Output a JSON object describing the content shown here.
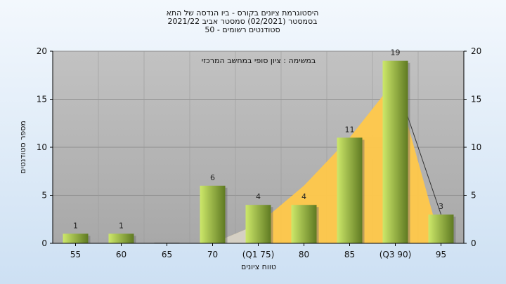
{
  "chart_data": {
    "type": "bar",
    "title_lines": [
      "היסטוגרמת ציונים בקורס - ביו הנדסה של התא",
      "בסמסטר  (02/2021)  סמסטר אביב 2021/22",
      "סטודנטים רשומים - 50"
    ],
    "annotation": "במשימה : ציון סופי במחשב המרכזי",
    "xlabel": "טווח ציונים",
    "ylabel": "מספר סטודנטים",
    "categories": [
      "55",
      "60",
      "65",
      "70",
      "(Q1 75)",
      "80",
      "85",
      "(Q3 90)",
      "95"
    ],
    "values": [
      1,
      1,
      0,
      6,
      4,
      4,
      11,
      19,
      3
    ],
    "data_labels": [
      "1",
      "1",
      "",
      "6",
      "4",
      "4",
      "11",
      "19",
      "3"
    ],
    "area_series": [
      0,
      0,
      0,
      0,
      2,
      6,
      11,
      17,
      0
    ],
    "ylim": [
      0,
      20
    ],
    "yticks": [
      "0",
      "5",
      "10",
      "15",
      "20"
    ],
    "grid": true,
    "legend": "none",
    "colors": {
      "plot_bg": "#b4b4b4",
      "bar_light": "#cde86a",
      "bar_dark": "#5f7a22",
      "area_fill": "#ffc84a",
      "area_tail": "#d0d0d0",
      "line": "#333333"
    }
  }
}
